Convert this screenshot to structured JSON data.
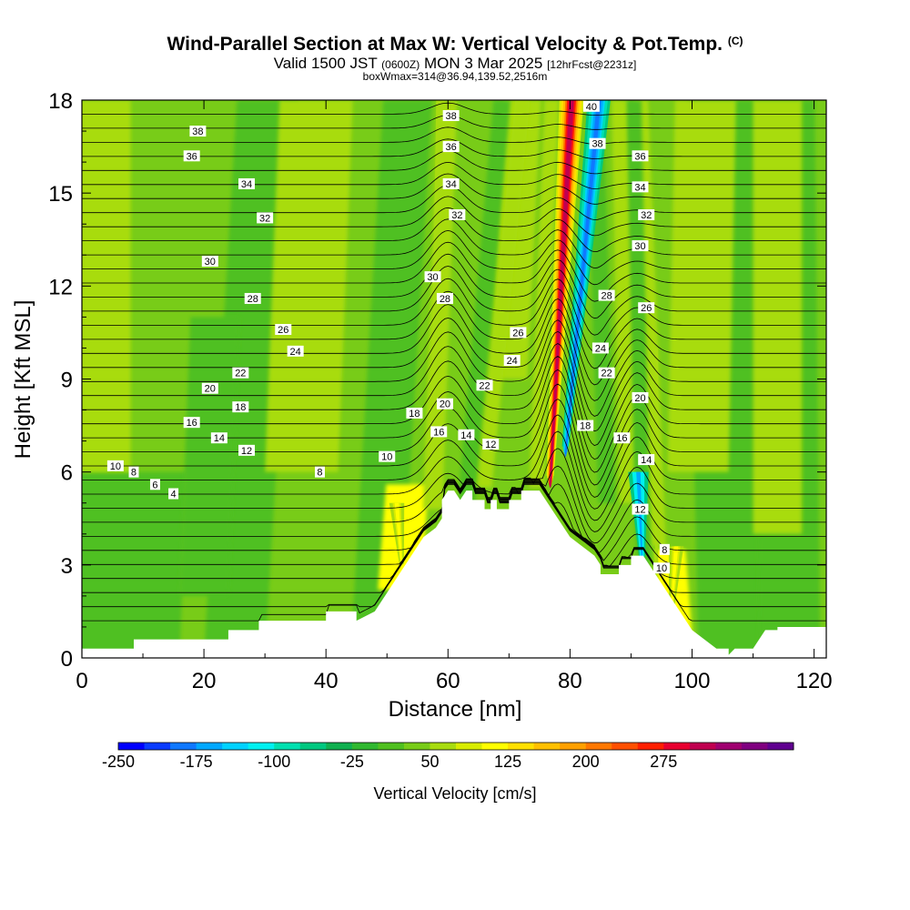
{
  "header": {
    "title": "Wind-Parallel Section at Max W: Vertical Velocity & Pot.Temp.",
    "copyright": "(C)",
    "valid_prefix": "Valid 1500 JST",
    "valid_utc": "(0600Z)",
    "valid_date": "MON 3 Mar 2025",
    "forecast": "[12hrFcst@2231z]",
    "box_info": "boxWmax=314@36.94,139.52,2516m"
  },
  "chart_data": {
    "type": "heatmap",
    "title": "Wind-Parallel Section at Max W: Vertical Velocity & Pot.Temp.",
    "xlabel": "Distance [nm]",
    "ylabel": "Height [Kft MSL]",
    "xlim": [
      0,
      122
    ],
    "ylim": [
      0,
      18
    ],
    "x_ticks": [
      "0",
      "20",
      "40",
      "60",
      "80",
      "100",
      "120"
    ],
    "y_ticks": [
      "0",
      "3",
      "6",
      "9",
      "12",
      "15",
      "18"
    ],
    "colorbar": {
      "label": "Vertical Velocity [cm/s]",
      "tick_labels": [
        "-250",
        "-175",
        "-100",
        "-25",
        "50",
        "125",
        "200",
        "275"
      ],
      "bounds": [
        -250,
        325
      ],
      "step": 25,
      "colors": [
        "#0000ff",
        "#0a3cff",
        "#0f78ff",
        "#00a8ff",
        "#00d2ff",
        "#00f0f0",
        "#00e0b0",
        "#00c880",
        "#10b050",
        "#30b830",
        "#50c020",
        "#78cc18",
        "#a8dc10",
        "#d8ec00",
        "#ffff00",
        "#ffe000",
        "#ffc000",
        "#ffa000",
        "#ff7800",
        "#ff5000",
        "#ff2000",
        "#e80030",
        "#c00050",
        "#a00070",
        "#800080",
        "#600090"
      ]
    },
    "terrain_profile": {
      "x": [
        0,
        8.5,
        8.5,
        24,
        24,
        29,
        29,
        40,
        40,
        45,
        45,
        48,
        50,
        52,
        54,
        56,
        58,
        59,
        59,
        60,
        61,
        62,
        63,
        64,
        64,
        66,
        66,
        67,
        67,
        68,
        68,
        70,
        70,
        72,
        72,
        75,
        76,
        78,
        80,
        82,
        84,
        85,
        85,
        88,
        88,
        90,
        90,
        92,
        94,
        96,
        98,
        100,
        104,
        106,
        106,
        107,
        110,
        112,
        114,
        114,
        122
      ],
      "y": [
        0.3,
        0.3,
        0.6,
        0.6,
        0.9,
        0.9,
        1.2,
        1.2,
        1.5,
        1.5,
        1.2,
        1.5,
        2.1,
        2.7,
        3.3,
        3.9,
        4.2,
        4.5,
        5.1,
        5.4,
        5.4,
        5.1,
        5.4,
        5.4,
        5.1,
        5.1,
        4.8,
        4.8,
        5.1,
        5.1,
        4.8,
        4.8,
        5.1,
        5.1,
        5.4,
        5.4,
        5.1,
        4.5,
        3.9,
        3.6,
        3.3,
        3.0,
        2.7,
        2.7,
        3.0,
        3.0,
        3.3,
        3.3,
        2.7,
        2.1,
        1.5,
        0.9,
        0.3,
        0.3,
        0.1,
        0.3,
        0.3,
        0.9,
        0.9,
        1.0,
        1.0
      ]
    },
    "updrafts": [
      {
        "x": 78.5,
        "top": 18,
        "bottom": 5.5,
        "peak": 314
      },
      {
        "x": 52,
        "top": 5.0,
        "bottom": 3.0,
        "peak": 100
      },
      {
        "x": 97,
        "top": 3.6,
        "bottom": 1.4,
        "peak": 100
      },
      {
        "x": 58,
        "top": 18,
        "bottom": 5.0,
        "peak": 60
      },
      {
        "x": 94,
        "top": 10,
        "bottom": 3.0,
        "peak": 60
      }
    ],
    "downdrafts": [
      {
        "x": 82,
        "top": 18,
        "bottom": 6.5,
        "peak": -200
      },
      {
        "x": 91.5,
        "top": 6.0,
        "bottom": 3.2,
        "peak": -160
      }
    ],
    "theta_contours": {
      "min": 4,
      "max": 40,
      "interval": 1,
      "labels": [
        {
          "x": 19,
          "y": 17.0,
          "text": "38"
        },
        {
          "x": 18,
          "y": 16.2,
          "text": "36"
        },
        {
          "x": 27,
          "y": 15.3,
          "text": "34"
        },
        {
          "x": 30,
          "y": 14.2,
          "text": "32"
        },
        {
          "x": 21,
          "y": 12.8,
          "text": "30"
        },
        {
          "x": 28,
          "y": 11.6,
          "text": "28"
        },
        {
          "x": 33,
          "y": 10.6,
          "text": "26"
        },
        {
          "x": 35,
          "y": 9.9,
          "text": "24"
        },
        {
          "x": 26,
          "y": 9.2,
          "text": "22"
        },
        {
          "x": 21,
          "y": 8.7,
          "text": "20"
        },
        {
          "x": 26,
          "y": 8.1,
          "text": "18"
        },
        {
          "x": 18,
          "y": 7.6,
          "text": "16"
        },
        {
          "x": 22.5,
          "y": 7.1,
          "text": "14"
        },
        {
          "x": 27,
          "y": 6.7,
          "text": "12"
        },
        {
          "x": 5.5,
          "y": 6.2,
          "text": "10"
        },
        {
          "x": 8.5,
          "y": 6.0,
          "text": "8"
        },
        {
          "x": 12,
          "y": 5.6,
          "text": "6"
        },
        {
          "x": 15,
          "y": 5.3,
          "text": "4"
        },
        {
          "x": 39,
          "y": 6.0,
          "text": "8"
        },
        {
          "x": 50,
          "y": 6.5,
          "text": "10"
        },
        {
          "x": 60.5,
          "y": 17.5,
          "text": "38"
        },
        {
          "x": 60.5,
          "y": 16.5,
          "text": "36"
        },
        {
          "x": 60.5,
          "y": 15.3,
          "text": "34"
        },
        {
          "x": 61.5,
          "y": 14.3,
          "text": "32"
        },
        {
          "x": 57.5,
          "y": 12.3,
          "text": "30"
        },
        {
          "x": 59.5,
          "y": 11.6,
          "text": "28"
        },
        {
          "x": 71.5,
          "y": 10.5,
          "text": "26"
        },
        {
          "x": 70.5,
          "y": 9.6,
          "text": "24"
        },
        {
          "x": 66,
          "y": 8.8,
          "text": "22"
        },
        {
          "x": 59.5,
          "y": 8.2,
          "text": "20"
        },
        {
          "x": 54.5,
          "y": 7.9,
          "text": "18"
        },
        {
          "x": 58.5,
          "y": 7.3,
          "text": "16"
        },
        {
          "x": 63,
          "y": 7.2,
          "text": "14"
        },
        {
          "x": 67,
          "y": 6.9,
          "text": "12"
        },
        {
          "x": 83.5,
          "y": 17.8,
          "text": "40"
        },
        {
          "x": 84.5,
          "y": 16.6,
          "text": "38"
        },
        {
          "x": 91.5,
          "y": 16.2,
          "text": "36"
        },
        {
          "x": 91.5,
          "y": 15.2,
          "text": "34"
        },
        {
          "x": 92.5,
          "y": 14.3,
          "text": "32"
        },
        {
          "x": 91.5,
          "y": 13.3,
          "text": "30"
        },
        {
          "x": 86,
          "y": 11.7,
          "text": "28"
        },
        {
          "x": 92.5,
          "y": 11.3,
          "text": "26"
        },
        {
          "x": 85,
          "y": 10.0,
          "text": "24"
        },
        {
          "x": 86,
          "y": 9.2,
          "text": "22"
        },
        {
          "x": 91.5,
          "y": 8.4,
          "text": "20"
        },
        {
          "x": 82.5,
          "y": 7.5,
          "text": "18"
        },
        {
          "x": 88.5,
          "y": 7.1,
          "text": "16"
        },
        {
          "x": 92.5,
          "y": 6.4,
          "text": "14"
        },
        {
          "x": 91.5,
          "y": 4.8,
          "text": "12"
        },
        {
          "x": 95.5,
          "y": 3.5,
          "text": "8"
        },
        {
          "x": 95,
          "y": 2.9,
          "text": "10"
        }
      ]
    }
  }
}
